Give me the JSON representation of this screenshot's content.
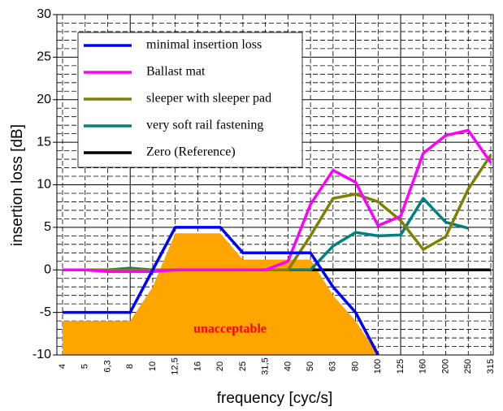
{
  "chart_data": {
    "type": "line",
    "y_label": "insertion loss [dB]",
    "x_label": "frequency [cyc/s]",
    "categories": [
      "4",
      "5",
      "6,3",
      "8",
      "10",
      "12,5",
      "16",
      "20",
      "25",
      "31,5",
      "40",
      "50",
      "63",
      "80",
      "100",
      "125",
      "160",
      "200",
      "250",
      "315"
    ],
    "ylim": [
      -10,
      30
    ],
    "yticks": [
      -10,
      -5,
      0,
      5,
      10,
      15,
      20,
      25,
      30
    ],
    "grid": true,
    "legend": "upper left",
    "area": {
      "label": "unacceptable",
      "color": "#ffa500",
      "values": [
        -6,
        -6,
        -6,
        -6,
        -2,
        4.3,
        4.3,
        4.3,
        1.2,
        1.2,
        1.2,
        1.2,
        -3,
        -6,
        -10,
        null,
        null,
        null,
        null,
        null
      ]
    },
    "series": [
      {
        "name": "minimal insertion loss",
        "color": "#0000ff",
        "values": [
          -5,
          -5,
          -5,
          -5,
          0,
          5,
          5,
          5,
          2,
          2,
          2,
          2,
          -2,
          -5,
          -10,
          null,
          null,
          null,
          null,
          null
        ]
      },
      {
        "name": "Ballast mat",
        "color": "#ff00ff",
        "values": [
          0,
          0,
          -0.2,
          -0.2,
          -0.2,
          0,
          0,
          0,
          0,
          0,
          1,
          7.7,
          11.7,
          10.3,
          5.2,
          6.3,
          13.7,
          15.8,
          16.4,
          12.6
        ]
      },
      {
        "name": "sleeper with sleeper pad",
        "color": "#808000",
        "values": [
          0,
          0,
          0,
          0,
          0,
          0,
          0,
          0,
          0,
          0,
          0,
          4,
          8.4,
          8.9,
          8,
          5.8,
          2.4,
          3.9,
          9.5,
          13.5
        ]
      },
      {
        "name": "very soft rail fastening",
        "color": "#008080",
        "values": [
          0,
          0,
          0,
          0.2,
          0,
          0,
          0,
          0,
          0,
          0,
          0,
          0,
          2.8,
          4.4,
          4,
          4.1,
          8.4,
          5.6,
          4.9,
          null
        ]
      },
      {
        "name": "Zero (Reference)",
        "color": "#000000",
        "values": [
          0,
          0,
          0,
          0,
          0,
          0,
          0,
          0,
          0,
          0,
          0,
          0,
          0,
          0,
          0,
          0,
          0,
          0,
          0,
          0
        ]
      }
    ]
  }
}
